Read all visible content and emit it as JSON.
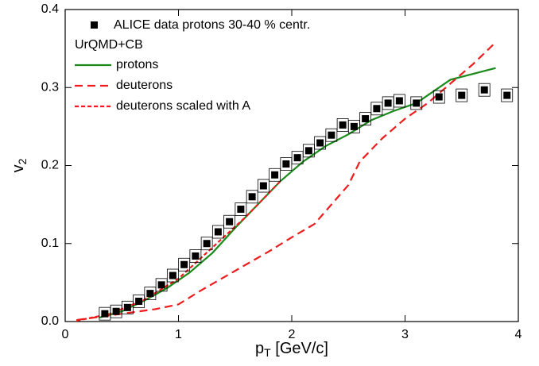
{
  "chart_data": {
    "type": "scatter-line",
    "xlabel": {
      "main": "p",
      "sub": "T",
      "rest": " [GeV/c]"
    },
    "ylabel": {
      "main": "v",
      "sub": "2"
    },
    "xlim": [
      0,
      4
    ],
    "ylim": [
      0,
      0.4
    ],
    "xticks": [
      0,
      1,
      2,
      3,
      4
    ],
    "yticks": [
      {
        "value": 0,
        "label": "0.0"
      },
      0.1,
      0.2,
      0.3,
      0.4
    ],
    "legend_title": "UrQMD+CB",
    "legend": "upper left",
    "points": {
      "name": "ALICE data protons 30-40 % centr.",
      "color": "#000000",
      "x": [
        0.35,
        0.45,
        0.55,
        0.65,
        0.75,
        0.85,
        0.95,
        1.05,
        1.15,
        1.25,
        1.35,
        1.45,
        1.55,
        1.65,
        1.75,
        1.85,
        1.95,
        2.05,
        2.15,
        2.25,
        2.35,
        2.45,
        2.55,
        2.65,
        2.75,
        2.85,
        2.95,
        3.1,
        3.3,
        3.5,
        3.7,
        3.9
      ],
      "values": [
        0.01,
        0.013,
        0.018,
        0.026,
        0.036,
        0.047,
        0.059,
        0.073,
        0.084,
        0.1,
        0.115,
        0.128,
        0.144,
        0.16,
        0.174,
        0.188,
        0.202,
        0.21,
        0.219,
        0.229,
        0.239,
        0.252,
        0.25,
        0.26,
        0.273,
        0.28,
        0.283,
        0.28,
        0.288,
        0.29,
        0.297,
        0.29
      ]
    },
    "series": [
      {
        "name": "protons",
        "color": "#1a8a1a",
        "dash": "solid",
        "x": [
          0.3,
          0.5,
          0.7,
          0.9,
          1.1,
          1.3,
          1.5,
          1.7,
          1.9,
          2.1,
          2.3,
          2.5,
          2.7,
          2.9,
          3.1,
          3.4,
          3.8
        ],
        "values": [
          0.005,
          0.013,
          0.027,
          0.043,
          0.063,
          0.088,
          0.12,
          0.15,
          0.18,
          0.205,
          0.225,
          0.24,
          0.258,
          0.27,
          0.28,
          0.31,
          0.325
        ]
      },
      {
        "name": "deuterons",
        "color": "#ee1c1c",
        "dash": "long",
        "x": [
          0.1,
          0.5,
          0.8,
          1.0,
          1.2,
          1.5,
          1.8,
          2.0,
          2.2,
          2.5,
          2.6,
          2.8,
          3.0,
          3.2,
          3.4,
          3.6,
          3.8
        ],
        "values": [
          0.002,
          0.01,
          0.016,
          0.022,
          0.04,
          0.065,
          0.09,
          0.108,
          0.125,
          0.175,
          0.205,
          0.235,
          0.26,
          0.28,
          0.305,
          0.33,
          0.358
        ]
      },
      {
        "name": "deuterons scaled with A",
        "color": "#ee1c1c",
        "dash": "short",
        "x": [
          0.1,
          0.4,
          0.7,
          1.0,
          1.3,
          1.6,
          1.8,
          1.9
        ],
        "values": [
          0.001,
          0.01,
          0.028,
          0.055,
          0.095,
          0.135,
          0.165,
          0.18
        ]
      }
    ]
  }
}
